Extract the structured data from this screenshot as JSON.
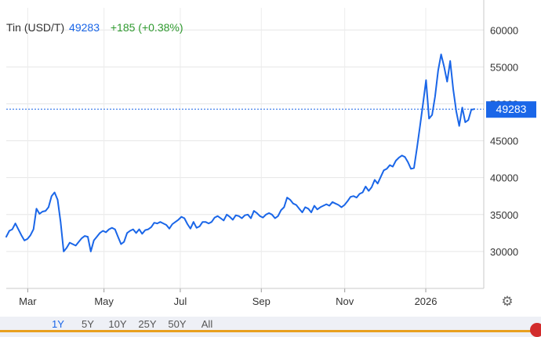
{
  "legend": {
    "label": "Tin (USD/T)",
    "price": "49283",
    "change": "+185 (+0.38%)"
  },
  "range_buttons": [
    {
      "label": "1Y",
      "active": true
    },
    {
      "label": "5Y",
      "active": false
    },
    {
      "label": "10Y",
      "active": false
    },
    {
      "label": "25Y",
      "active": false
    },
    {
      "label": "50Y",
      "active": false
    },
    {
      "label": "All",
      "active": false
    }
  ],
  "icons": {
    "settings": "gear-icon"
  },
  "colors": {
    "line": "#1a66e8",
    "price_tag": "#1a66e8",
    "change": "#2f9a2f"
  },
  "chart_data": {
    "type": "line",
    "title": "",
    "xlabel": "",
    "ylabel": "",
    "x_tick_labels": [
      "Mar",
      "May",
      "Jul",
      "Sep",
      "Nov",
      "2026"
    ],
    "y_tick_labels": [
      "30000",
      "35000",
      "40000",
      "45000",
      "50000",
      "55000",
      "60000"
    ],
    "ylim": [
      25000,
      63000
    ],
    "grid": true,
    "current_value": 49283,
    "current_value_label": "49283",
    "series": [
      {
        "values": [
          32000,
          32800,
          33000,
          33800,
          33000,
          32200,
          31500,
          31700,
          32200,
          33000,
          35800,
          35100,
          35400,
          35500,
          36000,
          37500,
          38000,
          37000,
          34000,
          30000,
          30500,
          31200,
          31000,
          30800,
          31300,
          31800,
          32100,
          32000,
          30000,
          31500,
          32000,
          32500,
          32800,
          32600,
          33000,
          33200,
          33000,
          32000,
          31000,
          31300,
          32500,
          32800,
          33000,
          32500,
          33000,
          32400,
          32900,
          33000,
          33300,
          33900,
          33800,
          34000,
          33800,
          33600,
          33100,
          33700,
          34000,
          34300,
          34700,
          34500,
          33700,
          33100,
          34000,
          33200,
          33400,
          34000,
          34000,
          33800,
          34000,
          34600,
          34800,
          34500,
          34200,
          35000,
          34700,
          34300,
          34900,
          34800,
          34500,
          34900,
          35000,
          34500,
          35500,
          35200,
          34800,
          34600,
          35000,
          35200,
          35000,
          34500,
          34800,
          35600,
          36000,
          37300,
          37000,
          36500,
          36300,
          35800,
          35300,
          36000,
          35800,
          35300,
          36200,
          35700,
          36000,
          36200,
          36400,
          36200,
          36700,
          36500,
          36300,
          36000,
          36300,
          36800,
          37400,
          37500,
          37300,
          37800,
          38000,
          38800,
          38200,
          38700,
          39700,
          39200,
          40100,
          41000,
          41200,
          41700,
          41500,
          42300,
          42700,
          43000,
          42800,
          42100,
          41200,
          41300,
          44000,
          47000,
          50000,
          53200,
          48000,
          48500,
          51000,
          54500,
          56700,
          55000,
          53000,
          55800,
          52000,
          49000,
          47000,
          49500,
          47500,
          47800,
          49200,
          49283
        ]
      }
    ]
  }
}
